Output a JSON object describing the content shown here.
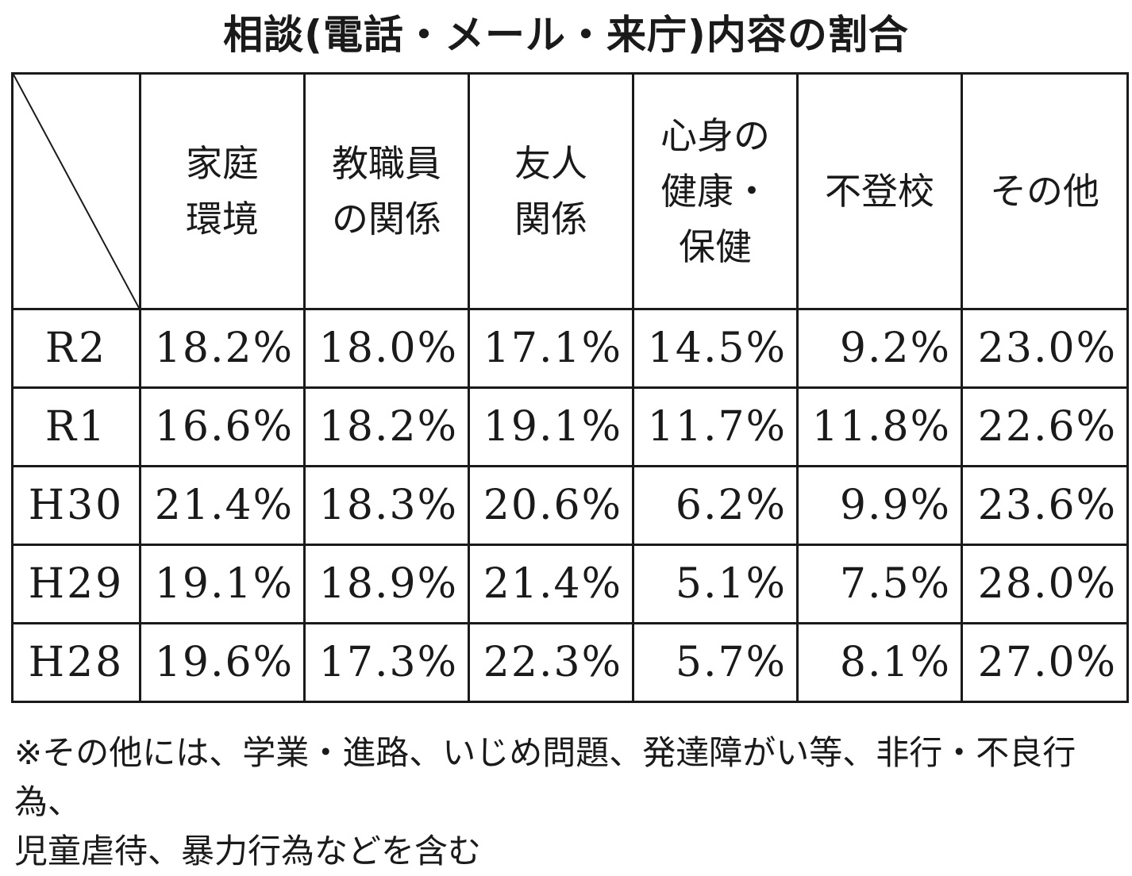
{
  "title": "相談(電話・メール・来庁)内容の割合",
  "chart_data": {
    "type": "table",
    "title": "相談(電話・メール・来庁)内容の割合",
    "columns": [
      [
        "家庭",
        "環境"
      ],
      [
        "教職員",
        "の関係"
      ],
      [
        "友人",
        "関係"
      ],
      [
        "心身の",
        "健康・",
        "保健"
      ],
      [
        "不登校"
      ],
      [
        "その他"
      ]
    ],
    "rows": [
      {
        "label": "R2",
        "values": [
          "18.2%",
          "18.0%",
          "17.1%",
          "14.5%",
          "9.2%",
          "23.0%"
        ]
      },
      {
        "label": "R1",
        "values": [
          "16.6%",
          "18.2%",
          "19.1%",
          "11.7%",
          "11.8%",
          "22.6%"
        ]
      },
      {
        "label": "H30",
        "values": [
          "21.4%",
          "18.3%",
          "20.6%",
          "6.2%",
          "9.9%",
          "23.6%"
        ]
      },
      {
        "label": "H29",
        "values": [
          "19.1%",
          "18.9%",
          "21.4%",
          "5.1%",
          "7.5%",
          "28.0%"
        ]
      },
      {
        "label": "H28",
        "values": [
          "19.6%",
          "17.3%",
          "22.3%",
          "5.7%",
          "8.1%",
          "27.0%"
        ]
      }
    ]
  },
  "note": {
    "line1": "※その他には、学業・進路、いじめ問題、発達障がい等、非行・不良行為、",
    "line2": "児童虐待、暴力行為などを含む"
  }
}
